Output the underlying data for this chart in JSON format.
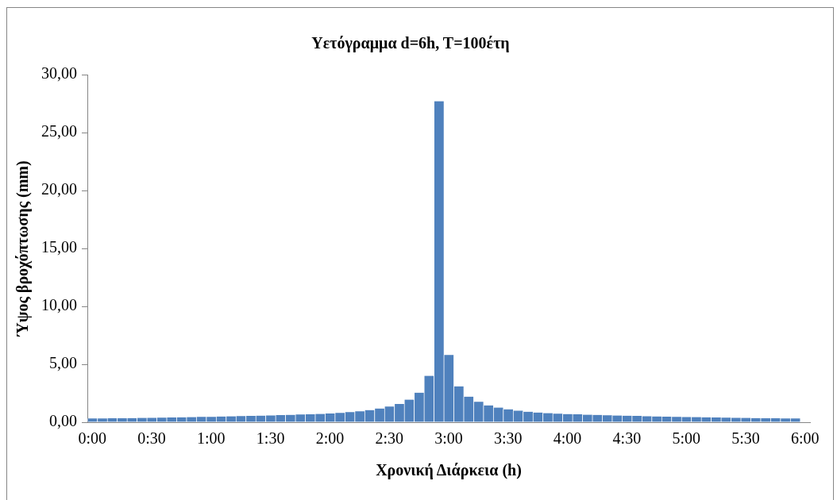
{
  "chart_data": {
    "type": "bar",
    "title": "Υετόγραμμα d=6h, T=100έτη",
    "xlabel": "Χρονική Διάρκεια (h)",
    "ylabel": "Ύψος βροχόπτωσης (mm)",
    "categories": [
      "0:00",
      null,
      null,
      null,
      null,
      null,
      "0:30",
      null,
      null,
      null,
      null,
      null,
      "1:00",
      null,
      null,
      null,
      null,
      null,
      "1:30",
      null,
      null,
      null,
      null,
      null,
      "2:00",
      null,
      null,
      null,
      null,
      null,
      "2:30",
      null,
      null,
      null,
      null,
      null,
      "3:00",
      null,
      null,
      null,
      null,
      null,
      "3:30",
      null,
      null,
      null,
      null,
      null,
      "4:00",
      null,
      null,
      null,
      null,
      null,
      "4:30",
      null,
      null,
      null,
      null,
      null,
      "5:00",
      null,
      null,
      null,
      null,
      null,
      "5:30",
      null,
      null,
      null,
      null,
      null,
      "6:00"
    ],
    "values": [
      0.32,
      0.33,
      0.34,
      0.35,
      0.36,
      0.37,
      0.38,
      0.4,
      0.41,
      0.43,
      0.44,
      0.46,
      0.47,
      0.49,
      0.51,
      0.53,
      0.55,
      0.57,
      0.59,
      0.61,
      0.64,
      0.66,
      0.69,
      0.72,
      0.76,
      0.81,
      0.88,
      0.95,
      1.05,
      1.19,
      1.36,
      1.57,
      1.95,
      2.55,
      4.0,
      27.7,
      5.8,
      3.1,
      2.21,
      1.76,
      1.45,
      1.26,
      1.12,
      1.0,
      0.9,
      0.84,
      0.78,
      0.74,
      0.71,
      0.68,
      0.65,
      0.63,
      0.6,
      0.58,
      0.56,
      0.54,
      0.52,
      0.5,
      0.48,
      0.47,
      0.45,
      0.44,
      0.42,
      0.41,
      0.39,
      0.38,
      0.37,
      0.36,
      0.35,
      0.34,
      0.33,
      0.32,
      null
    ],
    "color": "#4f81bd",
    "ylim": [
      0,
      30
    ],
    "yticks": [
      {
        "value": 0,
        "label": "0,00"
      },
      {
        "value": 5,
        "label": "5,00"
      },
      {
        "value": 10,
        "label": "10,00"
      },
      {
        "value": 15,
        "label": "15,00"
      },
      {
        "value": 20,
        "label": "20,00"
      },
      {
        "value": 25,
        "label": "25,00"
      },
      {
        "value": 30,
        "label": "30,00"
      }
    ],
    "legend": false
  }
}
